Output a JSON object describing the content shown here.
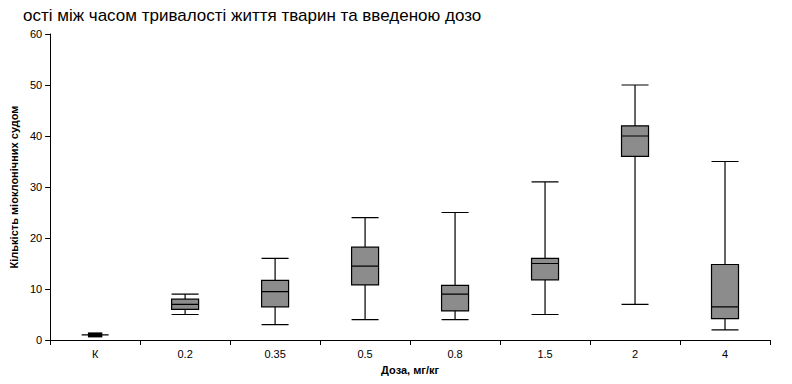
{
  "chart_data": {
    "type": "boxplot",
    "title": "ості між часом тривалості життя тварин та введеною дозо",
    "x_label": "Доза, мг/кг",
    "y_label": "Кількість міоклонічних судом",
    "categories": [
      "К",
      "0.2",
      "0.35",
      "0.5",
      "0.8",
      "1.5",
      "2",
      "4"
    ],
    "values": [
      [
        1,
        1,
        1,
        1,
        1
      ],
      [
        5,
        6,
        7,
        8,
        9
      ],
      [
        3,
        6.5,
        9.5,
        11.7,
        16
      ],
      [
        4,
        10.8,
        14.5,
        18.2,
        24
      ],
      [
        4,
        5.7,
        9,
        10.7,
        25
      ],
      [
        5,
        11.8,
        15,
        16,
        31
      ],
      [
        7,
        36,
        40,
        42,
        50
      ],
      [
        2,
        4.2,
        6.5,
        14.8,
        35
      ]
    ],
    "color": "#8c8c8c",
    "ylim": [
      0,
      60
    ],
    "yticks": [
      0,
      10,
      20,
      30,
      40,
      50,
      60
    ],
    "grid": false
  }
}
